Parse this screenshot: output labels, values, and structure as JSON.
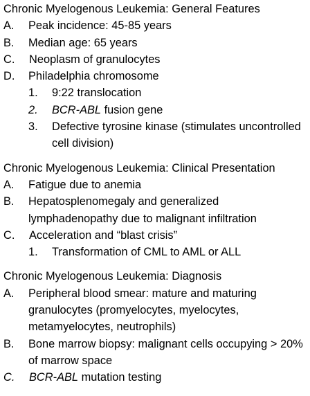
{
  "sections": [
    {
      "heading": "Chronic Myelogenous Leukemia: General Features",
      "items": [
        {
          "marker": "A.",
          "text": "Peak incidence: 45-85 years"
        },
        {
          "marker": "B.",
          "text": "Median age: 65 years"
        },
        {
          "marker": "C.",
          "text": "Neoplasm of granulocytes"
        },
        {
          "marker": "D.",
          "text": "Philadelphia chromosome",
          "subitems": [
            {
              "marker": "1.",
              "text": "9:22 translocation"
            },
            {
              "marker": "2.",
              "italic": "BCR-ABL",
              "text": " fusion gene"
            },
            {
              "marker": "3.",
              "text": "Defective tyrosine kinase (stimulates uncontrolled cell division)"
            }
          ]
        }
      ]
    },
    {
      "heading": "Chronic Myelogenous Leukemia: Clinical Presentation",
      "items": [
        {
          "marker": "A.",
          "text": "Fatigue due to anemia"
        },
        {
          "marker": "B.",
          "text": "Hepatosplenomegaly and generalized lymphadenopathy due to malignant infiltration"
        },
        {
          "marker": "C.",
          "text": "Acceleration and “blast crisis”",
          "subitems": [
            {
              "marker": "1.",
              "text": "Transformation of CML to AML or ALL"
            }
          ]
        }
      ]
    },
    {
      "heading": "Chronic Myelogenous Leukemia: Diagnosis",
      "items": [
        {
          "marker": "A.",
          "text": "Peripheral blood smear: mature and maturing granulocytes (promyelocytes, myelocytes, metamyelocytes, neutrophils)"
        },
        {
          "marker": "B.",
          "text": "Bone marrow biopsy: malignant cells occupying > 20% of marrow space"
        },
        {
          "marker": "C.",
          "italic": "BCR-ABL",
          "text": " mutation testing"
        }
      ]
    }
  ]
}
